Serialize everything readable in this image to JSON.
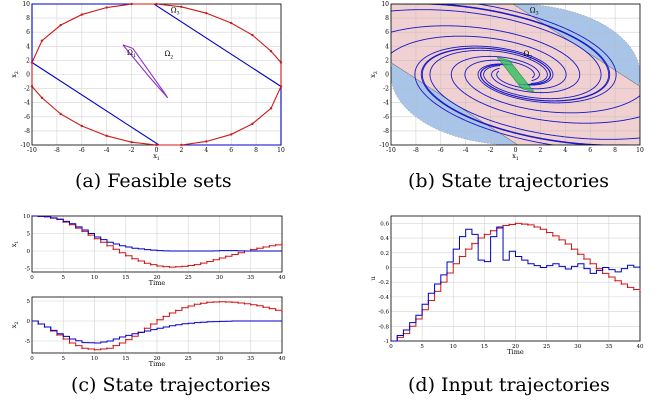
{
  "captions": [
    "(a) Feasible sets",
    "(b) State trajectories",
    "(c) State trajectories",
    "(d) Input trajectories"
  ],
  "chart_data": [
    {
      "id": "a",
      "type": "line",
      "xlabel": "x1",
      "ylabel": "x2",
      "xlim": [
        -10,
        10
      ],
      "ylim": [
        -10,
        10
      ],
      "xticks": [
        -10,
        -8,
        -6,
        -4,
        -2,
        0,
        2,
        4,
        6,
        8,
        10
      ],
      "yticks": [
        -10,
        -8,
        -6,
        -4,
        -2,
        0,
        2,
        4,
        6,
        8,
        10
      ],
      "grid": true,
      "annotations": [
        {
          "text": "Ω3",
          "x": 1.5,
          "y": 8.8
        },
        {
          "text": "Ω2",
          "x": 1.0,
          "y": 2.6
        },
        {
          "text": "Ω1",
          "x": -2.0,
          "y": 2.8
        }
      ],
      "series": [
        {
          "name": "",
          "color": "#0000c8",
          "x": [
            -10,
            -10,
            -9.4,
            -0.2,
            10,
            10,
            9.4,
            0.2,
            -10
          ],
          "y": [
            1.7,
            10,
            10,
            10,
            -1.7,
            -10,
            -10,
            -10,
            1.7
          ]
        },
        {
          "name": "",
          "color": "#d01818",
          "markers": true,
          "x": [
            -10,
            -9.2,
            -7.7,
            -6,
            -4,
            -2,
            0,
            2,
            4,
            6,
            7.7,
            9.2,
            10,
            10,
            9.2,
            7.7,
            6,
            4,
            2,
            0,
            -2,
            -4,
            -6,
            -7.7,
            -9.2,
            -10,
            -10
          ],
          "y": [
            1.7,
            4.8,
            7.0,
            8.5,
            9.5,
            10,
            10,
            9.6,
            8.7,
            7.3,
            5.6,
            3.3,
            1.7,
            -1.7,
            -4.8,
            -7.0,
            -8.5,
            -9.5,
            -10,
            -10,
            -9.6,
            -8.7,
            -7.3,
            -5.6,
            -3.3,
            -1.7,
            1.7
          ]
        },
        {
          "name": "",
          "color": "#9030c8",
          "x": [
            -2.7,
            -1.9,
            0.6,
            0.9,
            -0.5,
            -2.7
          ],
          "y": [
            4.2,
            3.7,
            -2.5,
            -3.3,
            -0.5,
            4.2
          ]
        }
      ]
    },
    {
      "id": "b",
      "type": "line",
      "xlabel": "x1",
      "ylabel": "x2",
      "xlim": [
        -10,
        10
      ],
      "ylim": [
        -10,
        10
      ],
      "xticks": [
        -10,
        -8,
        -6,
        -4,
        -2,
        0,
        2,
        4,
        6,
        8,
        10
      ],
      "yticks": [
        -10,
        -8,
        -6,
        -4,
        -2,
        0,
        2,
        4,
        6,
        8,
        10
      ],
      "grid": true,
      "annotations": [
        {
          "text": "Ω3",
          "x": 1.5,
          "y": 8.8
        },
        {
          "text": "Ω2",
          "x": 1.0,
          "y": 2.6
        }
      ],
      "regions": {
        "ellipse": {
          "rx": 10,
          "ry": 10,
          "color": "#a8c4e8"
        },
        "band": {
          "color": "#f0d0d0",
          "x": [
            -10,
            -10,
            -9.4,
            -0.2,
            10,
            10,
            9.4,
            0.2
          ],
          "y": [
            1.7,
            10,
            10,
            10,
            -1.7,
            -10,
            -10,
            -10
          ]
        }
      },
      "trajectory_starts": [
        [
          -10,
          9
        ],
        [
          -10,
          6
        ],
        [
          -10,
          3
        ],
        [
          -9,
          10
        ],
        [
          -6,
          10
        ],
        [
          -3,
          10
        ],
        [
          10,
          -9
        ],
        [
          10,
          -6
        ],
        [
          10,
          -3
        ],
        [
          9,
          -10
        ],
        [
          6,
          -10
        ],
        [
          3,
          -10
        ]
      ]
    },
    {
      "id": "c1",
      "type": "line",
      "xlabel": "Time",
      "ylabel": "x1",
      "xlim": [
        0,
        40
      ],
      "ylim": [
        -6,
        10
      ],
      "xticks": [
        0,
        5,
        10,
        15,
        20,
        25,
        30,
        35,
        40
      ],
      "yticks": [
        -5,
        0,
        5,
        10
      ],
      "grid": true,
      "series": [
        {
          "name": "",
          "color": "#d01818",
          "dotted": true,
          "x": [
            0,
            2,
            4,
            6,
            8,
            10,
            12,
            14,
            16,
            18,
            20,
            22,
            24,
            26,
            28,
            30,
            32,
            34,
            36,
            38,
            40
          ],
          "y": [
            10,
            9.8,
            9.0,
            7.5,
            5.6,
            3.5,
            1.5,
            -0.5,
            -2.2,
            -3.5,
            -4.3,
            -4.6,
            -4.4,
            -3.9,
            -3.0,
            -2.0,
            -1.0,
            0.0,
            0.8,
            1.5,
            2.0
          ]
        },
        {
          "name": "",
          "color": "#0000c8",
          "x": [
            0,
            2,
            4,
            6,
            8,
            10,
            12,
            14,
            16,
            18,
            20,
            22,
            24,
            26,
            28,
            30,
            32,
            34,
            36,
            38,
            40
          ],
          "y": [
            10,
            9.8,
            9.1,
            7.8,
            6.0,
            4.0,
            2.5,
            1.5,
            0.8,
            0.4,
            0.1,
            0.0,
            0.0,
            0.0,
            0.0,
            0.1,
            0.1,
            0.0,
            0.0,
            0.0,
            0.0
          ]
        }
      ]
    },
    {
      "id": "c2",
      "type": "line",
      "xlabel": "Time",
      "ylabel": "x2",
      "xlim": [
        0,
        40
      ],
      "ylim": [
        -8,
        6
      ],
      "xticks": [
        0,
        5,
        10,
        15,
        20,
        25,
        30,
        35,
        40
      ],
      "yticks": [
        -5,
        0,
        5
      ],
      "grid": true,
      "series": [
        {
          "name": "",
          "color": "#d01818",
          "dotted": true,
          "x": [
            0,
            2,
            4,
            6,
            8,
            10,
            12,
            14,
            16,
            18,
            20,
            22,
            24,
            26,
            28,
            30,
            32,
            34,
            36,
            38,
            40
          ],
          "y": [
            0,
            -1.5,
            -3.5,
            -5.5,
            -6.8,
            -7.2,
            -6.8,
            -5.5,
            -3.8,
            -1.8,
            0.3,
            2.0,
            3.3,
            4.2,
            4.7,
            4.8,
            4.7,
            4.3,
            3.8,
            3.1,
            2.3
          ]
        },
        {
          "name": "",
          "color": "#0000c8",
          "x": [
            0,
            2,
            4,
            6,
            8,
            10,
            12,
            14,
            16,
            18,
            20,
            22,
            24,
            26,
            28,
            30,
            32,
            34,
            36,
            38,
            40
          ],
          "y": [
            0,
            -1.5,
            -3.2,
            -4.5,
            -5.4,
            -5.5,
            -5.0,
            -4.0,
            -3.2,
            -2.5,
            -1.8,
            -1.2,
            -0.7,
            -0.4,
            -0.2,
            -0.1,
            0.0,
            0.0,
            0.0,
            0.0,
            0.0
          ]
        }
      ]
    },
    {
      "id": "d",
      "type": "line",
      "xlabel": "Time",
      "ylabel": "u",
      "xlim": [
        0,
        40
      ],
      "ylim": [
        -1,
        0.7
      ],
      "xticks": [
        0,
        5,
        10,
        15,
        20,
        25,
        30,
        35,
        40
      ],
      "yticks": [
        -1,
        -0.8,
        -0.6,
        -0.4,
        -0.2,
        0,
        0.2,
        0.4,
        0.6
      ],
      "yticklabels": [
        "-1",
        "-0.8",
        "-0.6",
        "-0.4",
        "-0.2",
        "0",
        "0.2",
        "0.4",
        "0.6"
      ],
      "grid": true,
      "series": [
        {
          "name": "",
          "color": "#d01818",
          "dotted": true,
          "x": [
            0,
            2,
            4,
            6,
            8,
            10,
            12,
            14,
            16,
            18,
            20,
            22,
            24,
            26,
            28,
            30,
            32,
            34,
            36,
            38,
            40
          ],
          "y": [
            -1.0,
            -0.9,
            -0.7,
            -0.45,
            -0.2,
            0.05,
            0.25,
            0.4,
            0.5,
            0.57,
            0.6,
            0.58,
            0.52,
            0.43,
            0.32,
            0.18,
            0.05,
            -0.08,
            -0.18,
            -0.27,
            -0.33
          ]
        },
        {
          "name": "",
          "color": "#0000c8",
          "x": [
            0,
            2,
            4,
            6,
            8,
            10,
            11,
            12,
            13,
            14,
            15,
            16,
            17,
            18,
            19,
            20,
            22,
            24,
            26,
            28,
            30,
            32,
            34,
            36,
            38,
            40
          ],
          "y": [
            -1.0,
            -0.85,
            -0.65,
            -0.35,
            -0.1,
            0.25,
            0.42,
            0.52,
            0.45,
            0.1,
            0.08,
            0.42,
            0.55,
            0.1,
            0.22,
            0.15,
            0.05,
            0.0,
            0.05,
            -0.02,
            0.05,
            -0.08,
            0.0,
            -0.06,
            0.03,
            -0.02
          ]
        }
      ]
    }
  ]
}
